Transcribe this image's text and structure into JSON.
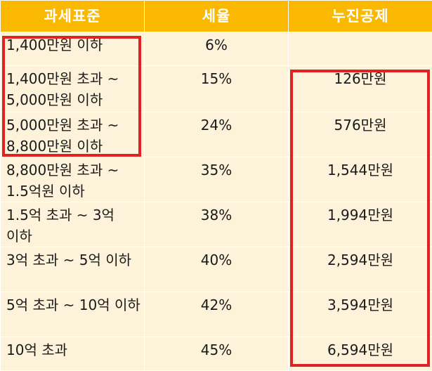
{
  "headers": [
    "과세표준",
    "세율",
    "누진공제"
  ],
  "rows": [
    {
      "base": "1,400만원 이하",
      "rate": "6%",
      "deduction": ""
    },
    {
      "base": "1,400만원 초과 ~ 5,000만원 이하",
      "rate": "15%",
      "deduction": "126만원"
    },
    {
      "base": "5,000만원 초과 ~ 8,800만원 이하",
      "rate": "24%",
      "deduction": "576만원"
    },
    {
      "base": "8,800만원 초과 ~ 1.5억원 이하",
      "rate": "35%",
      "deduction": "1,544만원"
    },
    {
      "base": "1.5억 초과 ~ 3억 이하",
      "rate": "38%",
      "deduction": "1,994만원"
    },
    {
      "base": "3억 초과 ~ 5억 이하",
      "rate": "40%",
      "deduction": "2,594만원"
    },
    {
      "base": "5억 초과 ~ 10억 이하",
      "rate": "42%",
      "deduction": "3,594만원"
    },
    {
      "base": "10억 초과",
      "rate": "45%",
      "deduction": "6,594만원"
    }
  ],
  "colors": {
    "header_bg": "#fbb800",
    "header_text": "#ffffff",
    "cell_bg": "#fdf3da",
    "highlight": "#e02222"
  }
}
